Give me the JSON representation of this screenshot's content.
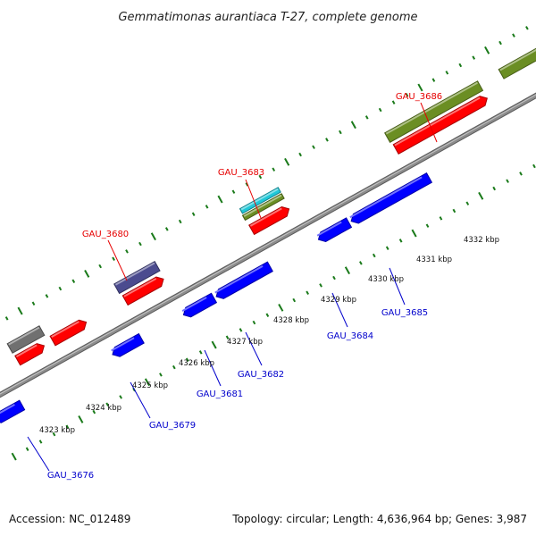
{
  "title": "Gemmatimonas aurantiaca T-27, complete genome",
  "footer": {
    "accession": "Accession: NC_012489",
    "stats": "Topology: circular; Length: 4,636,964 bp; Genes: 3,987"
  },
  "tick_labels": [
    "4323 kbp",
    "4324 kbp",
    "4325 kbp",
    "4326 kbp",
    "4327 kbp",
    "4328 kbp",
    "4329 kbp",
    "4330 kbp",
    "4331 kbp",
    "4332 kbp"
  ],
  "forward_labels": [
    "GAU_3680",
    "GAU_3683",
    "GAU_3686"
  ],
  "reverse_labels": [
    "GAU_3676",
    "GAU_3679",
    "GAU_3681",
    "GAU_3682",
    "GAU_3684",
    "GAU_3685"
  ],
  "colors": {
    "forward_label": "#e60000",
    "reverse_label": "#0000cc",
    "cds_forward": "#ff0000",
    "cds_reverse": "#0000ff",
    "feature_olive": "#6b8e23",
    "feature_slate": "#4b4b8f",
    "feature_gray": "#707070",
    "feature_cyan": "#20c8d8",
    "backbone": "#8c8c8c",
    "tick_marks": "#1a7a1a"
  }
}
